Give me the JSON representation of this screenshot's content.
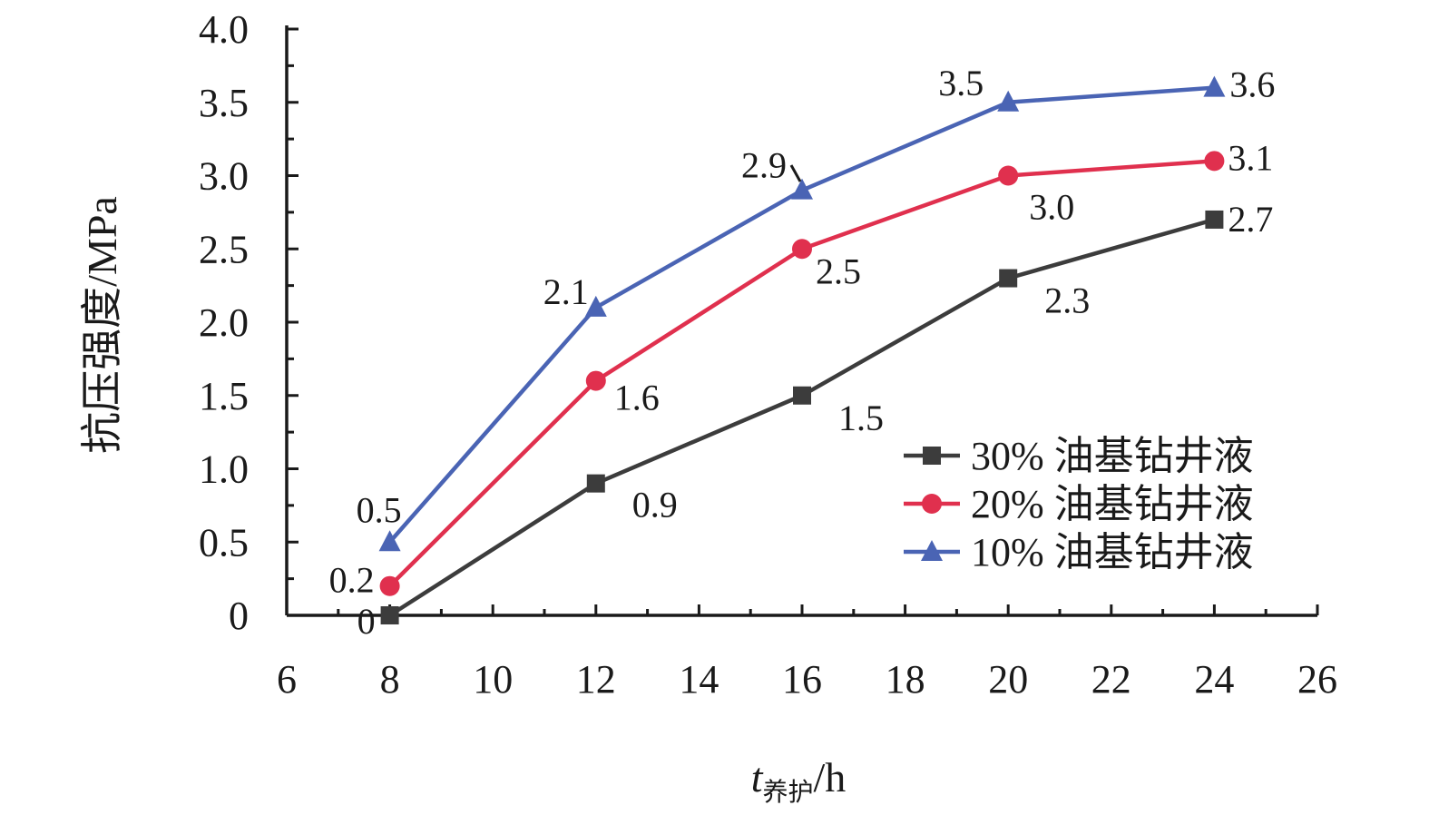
{
  "chart_data": {
    "type": "line",
    "xlabel_main": "t",
    "xlabel_sub": "养护",
    "xlabel_unit": "/h",
    "ylabel": "抗压强度/MPa",
    "xlim": [
      6,
      26
    ],
    "ylim": [
      0,
      4.0
    ],
    "x_ticks": [
      6,
      8,
      10,
      12,
      14,
      16,
      18,
      20,
      22,
      24,
      26
    ],
    "y_ticks": [
      0,
      0.5,
      1.0,
      1.5,
      2.0,
      2.5,
      3.0,
      3.5,
      4.0
    ],
    "x_tick_labels": [
      "6",
      "8",
      "10",
      "12",
      "14",
      "16",
      "18",
      "20",
      "22",
      "24",
      "26"
    ],
    "y_tick_labels": [
      "0",
      "0.5",
      "1.0",
      "1.5",
      "2.0",
      "2.5",
      "3.0",
      "3.5",
      "4.0"
    ],
    "grid": false,
    "legend_position": "bottom-right",
    "x": [
      8,
      12,
      16,
      20,
      24
    ],
    "series": [
      {
        "name": "30% 油基钻井液",
        "color": "#3c3c3c",
        "marker": "square",
        "values": [
          0,
          0.9,
          1.5,
          2.3,
          2.7
        ],
        "labels": [
          "0",
          "0.9",
          "1.5",
          "2.3",
          "2.7"
        ]
      },
      {
        "name": "20% 油基钻井液",
        "color": "#e0304e",
        "marker": "circle",
        "values": [
          0.2,
          1.6,
          2.5,
          3.0,
          3.1
        ],
        "labels": [
          "0.2",
          "1.6",
          "2.5",
          "3.0",
          "3.1"
        ]
      },
      {
        "name": "10% 油基钻井液",
        "color": "#4a64b4",
        "marker": "triangle",
        "values": [
          0.5,
          2.1,
          2.9,
          3.5,
          3.6
        ],
        "labels": [
          "0.5",
          "2.1",
          "2.9",
          "3.5",
          "3.6"
        ]
      }
    ]
  }
}
